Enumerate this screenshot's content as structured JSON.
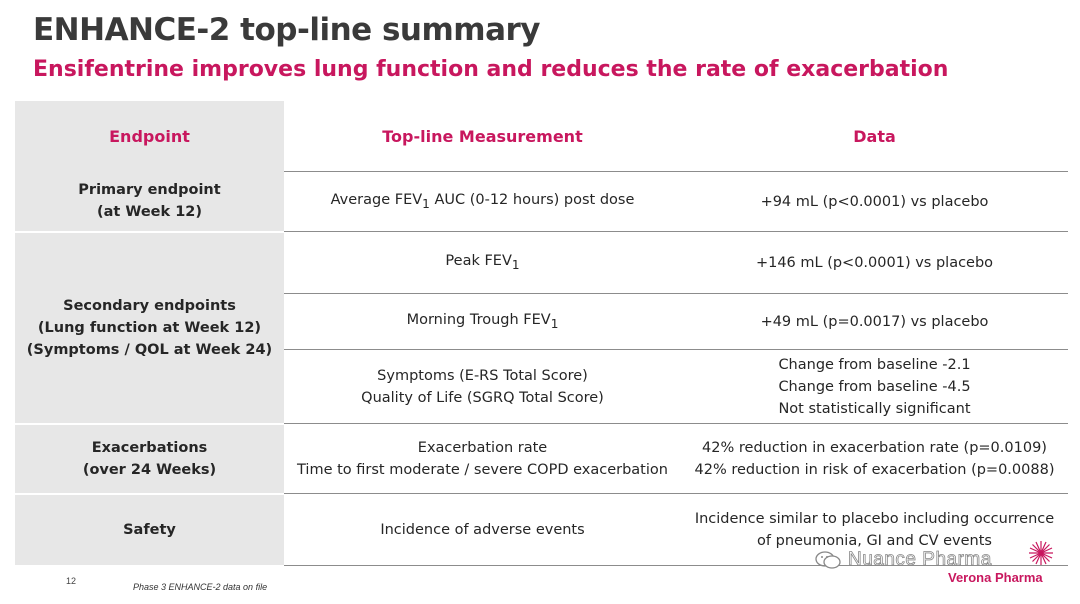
{
  "header": {
    "title": "ENHANCE-2 top-line summary",
    "subtitle": "Ensifentrine improves lung function and reduces the rate of exacerbation"
  },
  "table": {
    "columns": [
      "Endpoint",
      "Top-line Measurement",
      "Data"
    ],
    "rows": [
      {
        "endpoint": [
          "Primary endpoint",
          "(at Week 12)"
        ],
        "items": [
          {
            "measure_pre": "Average FEV",
            "measure_sub": "1",
            "measure_post": " AUC (0-12 hours) post dose",
            "data": [
              "+94 mL (p<0.0001) vs placebo"
            ]
          }
        ]
      },
      {
        "endpoint": [
          "Secondary endpoints",
          "(Lung function at Week 12)",
          "(Symptoms / QOL at Week 24)"
        ],
        "items": [
          {
            "measure_pre": "Peak FEV",
            "measure_sub": "1",
            "data": [
              "+146 mL (p<0.0001) vs placebo"
            ]
          },
          {
            "measure_pre": "Morning Trough FEV",
            "measure_sub": "1",
            "data": [
              "+49 mL (p=0.0017) vs placebo"
            ]
          },
          {
            "measure": [
              "Symptoms (E-RS Total Score)",
              "Quality of Life (SGRQ Total Score)"
            ],
            "data": [
              "Change from baseline -2.1",
              "Change from baseline -4.5",
              "Not statistically significant"
            ]
          }
        ]
      },
      {
        "endpoint": [
          "Exacerbations",
          "(over 24 Weeks)"
        ],
        "items": [
          {
            "measure": [
              "Exacerbation rate",
              "Time to first moderate / severe COPD exacerbation"
            ],
            "data": [
              "42% reduction in exacerbation rate (p=0.0109)",
              "42% reduction in risk of exacerbation (p=0.0088)"
            ]
          }
        ]
      },
      {
        "endpoint": [
          "Safety"
        ],
        "items": [
          {
            "measure": [
              "Incidence of adverse events"
            ],
            "data": [
              "Incidence similar to placebo including occurrence",
              "of pneumonia, GI and CV events"
            ]
          }
        ]
      }
    ]
  },
  "footer": {
    "page_number": "12",
    "note": "Phase 3 ENHANCE-2 data on file",
    "logo": "Verona Pharma",
    "watermark": "Nuance Pharma"
  },
  "colors": {
    "accent": "#c8175e",
    "shade": "#e7e7e7",
    "title": "#3a3a3a"
  },
  "icons": {
    "watermark": "wechat-icon",
    "logo": "starburst-icon"
  }
}
